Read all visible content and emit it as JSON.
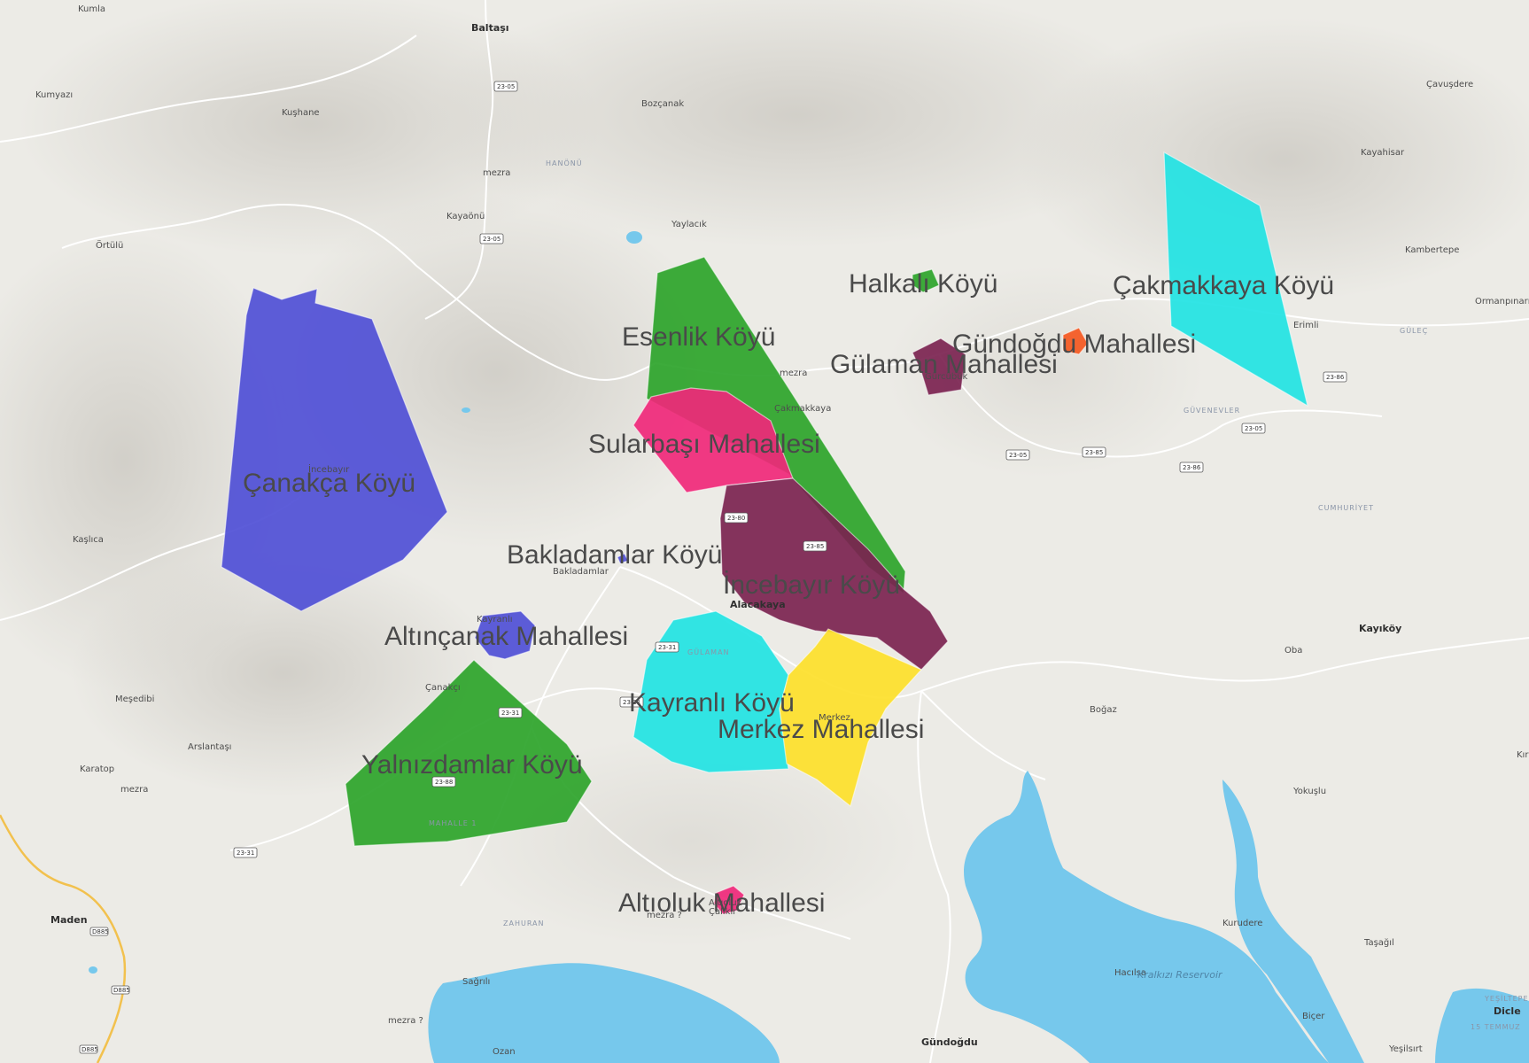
{
  "map": {
    "regions": [
      {
        "name": "Çanakça Köyü",
        "color": "#4f4fd6"
      },
      {
        "name": "Esenlik Köyü",
        "color": "#2ca42a"
      },
      {
        "name": "Halkalı Köyü",
        "color": "#2ca42a"
      },
      {
        "name": "Gündoğdu Mahallesi",
        "color": "#f5581f"
      },
      {
        "name": "Gülaman Mahallesi",
        "color": "#7b2350"
      },
      {
        "name": "Çakmakkaya Köyü",
        "color": "#21e3e3"
      },
      {
        "name": "Sularbaşı Mahallesi",
        "color": "#f0287a"
      },
      {
        "name": "Bakladamlar Köyü",
        "color": "#4f4fd6"
      },
      {
        "name": "İncebayır Köyü",
        "color": "#7b2350"
      },
      {
        "name": "Altınçanak Mahallesi",
        "color": "#4f4fd6"
      },
      {
        "name": "Kayranlı Köyü",
        "color": "#21e3e3"
      },
      {
        "name": "Merkez Mahallesi",
        "color": "#fde02a"
      },
      {
        "name": "Yalnızdamlar Köyü",
        "color": "#2ca42a"
      },
      {
        "name": "Altıoluk Mahallesi",
        "color": "#f0287a"
      }
    ],
    "places": [
      "Kumla",
      "Baltaşı",
      "Kumyazı",
      "Kuşhane",
      "Bozçanak",
      "mezra",
      "Kayaönü",
      "Örtülü",
      "Yaylacık",
      "Çavuşdere",
      "Kayahisar",
      "Kambertepe",
      "Ormanpınarı",
      "Erimli",
      "mezra",
      "Çakmakkaya",
      "Gürcübük",
      "İncebayır",
      "Kaşlıca",
      "Bakladamlar",
      "Alacakaya",
      "Kayranlı",
      "Çanakçı",
      "Meşedibi",
      "Arslantaşı",
      "Karatop",
      "mezra",
      "Oba",
      "Kayıköy",
      "Boğaz",
      "Yokuşlu",
      "Kurudere",
      "Taşağıl",
      "Hacılsa",
      "Biçer",
      "Yeşilsırt",
      "Dicle",
      "Kırık",
      "Altıoluk",
      "Sağrılı",
      "Ozan",
      "Gündoğdu",
      "mezra ?",
      "mezra ?",
      "Çalıkır",
      "Maden",
      "Merkez"
    ],
    "major_places": [
      "Baltaşı",
      "Alacakaya",
      "Kayıköy",
      "Maden",
      "Gündoğdu",
      "Dicle"
    ],
    "districts": [
      "HANÖNÜ",
      "GÜVENEVLER",
      "CUMHURİYET",
      "GÜLAMAN",
      "ZAHURAN",
      "MAHALLE 1",
      "GÜLEÇ",
      "YEŞİLTEPE",
      "15 TEMMUZ"
    ],
    "water_labels": [
      "Kralkızı Reservoir"
    ],
    "road_badges": [
      "23-05",
      "23-05",
      "23-05",
      "23-05",
      "23-85",
      "23-85",
      "23-86",
      "23-86",
      "23-31",
      "23-31",
      "23-31",
      "23-31",
      "23-80",
      "23-88",
      "D885",
      "D885",
      "D885"
    ]
  }
}
